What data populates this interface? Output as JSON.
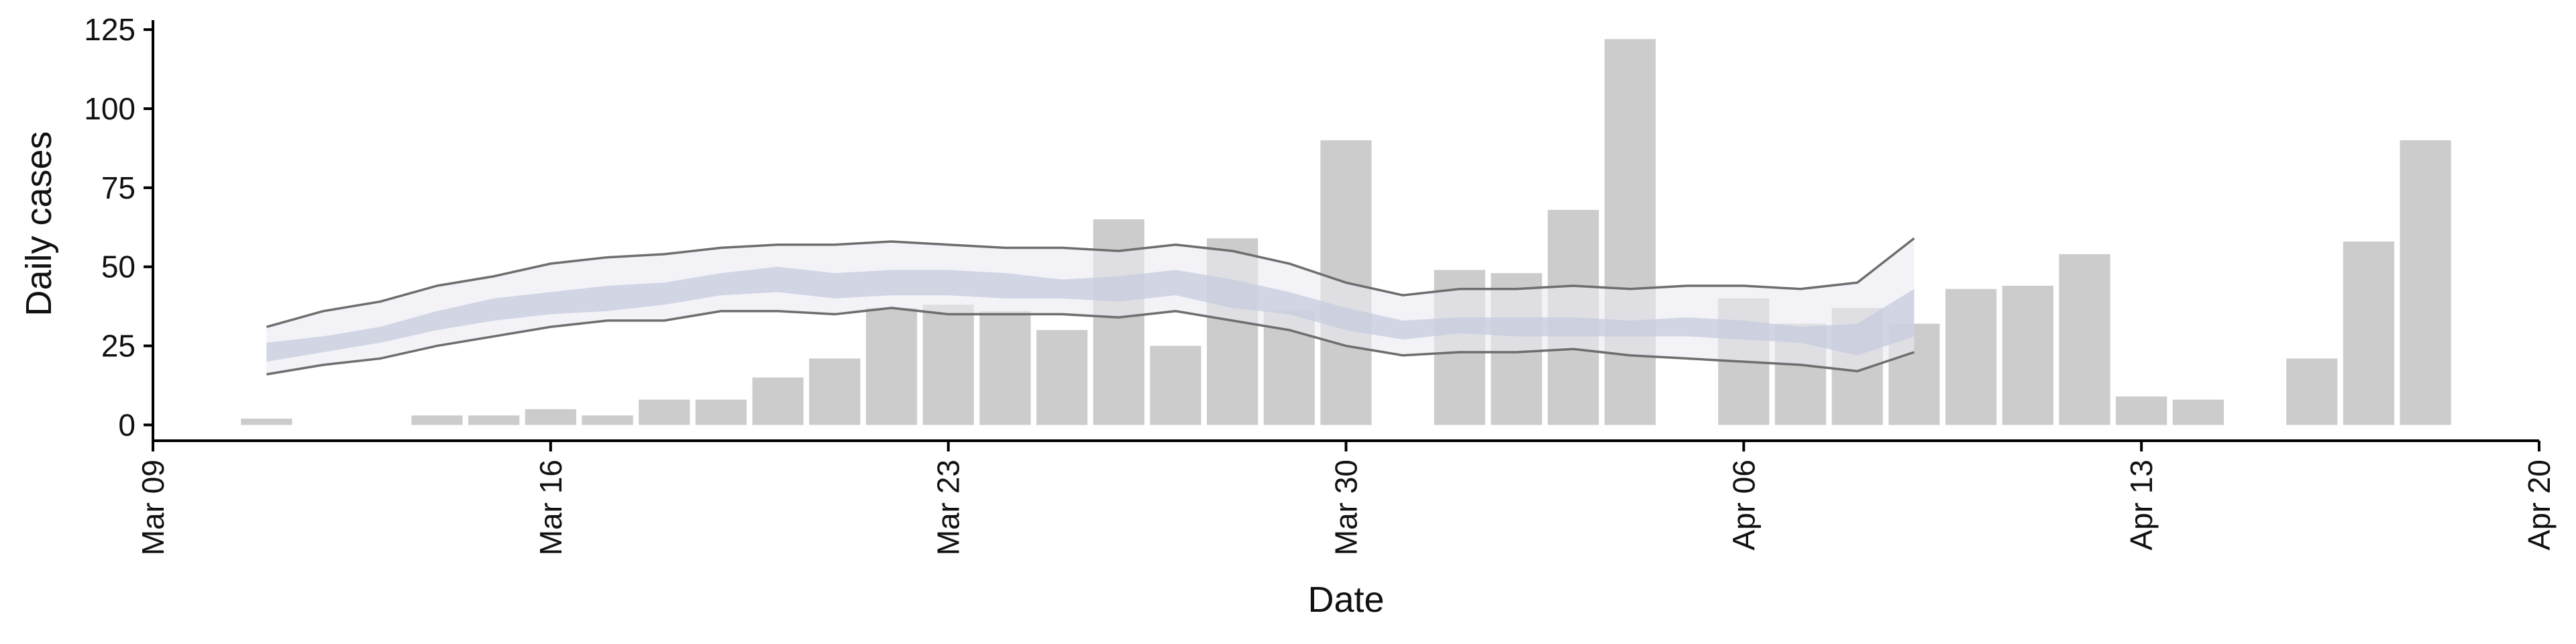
{
  "chart_data": {
    "type": "bar",
    "xlabel": "Date",
    "ylabel": "Daily cases",
    "xlim": [
      "2020-03-09",
      "2020-04-20"
    ],
    "ylim": [
      -5,
      128
    ],
    "x_ticks": [
      "Mar 09",
      "Mar 16",
      "Mar 23",
      "Mar 30",
      "Apr 06",
      "Apr 13",
      "Apr 20"
    ],
    "y_ticks": [
      "0",
      "25",
      "50",
      "75",
      "100",
      "125"
    ],
    "y_tick_values": [
      0,
      25,
      50,
      75,
      100,
      125
    ],
    "grid": false,
    "colors": {
      "bars": "#cccccc",
      "band_outer": "#e9eaf2",
      "band_inner": "#c5cbdd",
      "band_lines": "#6e6e6e",
      "axis": "#000000"
    },
    "bars": {
      "dates": [
        "2020-03-11",
        "2020-03-14",
        "2020-03-15",
        "2020-03-16",
        "2020-03-17",
        "2020-03-18",
        "2020-03-19",
        "2020-03-20",
        "2020-03-21",
        "2020-03-22",
        "2020-03-23",
        "2020-03-24",
        "2020-03-25",
        "2020-03-26",
        "2020-03-27",
        "2020-03-28",
        "2020-03-29",
        "2020-03-30",
        "2020-04-01",
        "2020-04-02",
        "2020-04-03",
        "2020-04-04",
        "2020-04-06",
        "2020-04-07",
        "2020-04-08",
        "2020-04-09",
        "2020-04-10",
        "2020-04-11",
        "2020-04-12",
        "2020-04-13",
        "2020-04-14",
        "2020-04-16",
        "2020-04-17",
        "2020-04-18"
      ],
      "values": [
        2,
        3,
        3,
        5,
        3,
        8,
        8,
        15,
        21,
        37,
        38,
        36,
        30,
        65,
        25,
        59,
        36,
        90,
        49,
        48,
        68,
        122,
        40,
        32,
        37,
        32,
        43,
        44,
        54,
        9,
        8,
        21,
        58,
        90
      ]
    },
    "estimate": {
      "dates": [
        "2020-03-11",
        "2020-03-12",
        "2020-03-13",
        "2020-03-14",
        "2020-03-15",
        "2020-03-16",
        "2020-03-17",
        "2020-03-18",
        "2020-03-19",
        "2020-03-20",
        "2020-03-21",
        "2020-03-22",
        "2020-03-23",
        "2020-03-24",
        "2020-03-25",
        "2020-03-26",
        "2020-03-27",
        "2020-03-28",
        "2020-03-29",
        "2020-03-30",
        "2020-03-31",
        "2020-04-01",
        "2020-04-02",
        "2020-04-03",
        "2020-04-04",
        "2020-04-05",
        "2020-04-06",
        "2020-04-07",
        "2020-04-08",
        "2020-04-09"
      ],
      "upper_90": [
        31,
        36,
        39,
        44,
        47,
        51,
        53,
        54,
        56,
        57,
        57,
        58,
        57,
        56,
        56,
        55,
        57,
        55,
        51,
        45,
        41,
        43,
        43,
        44,
        43,
        44,
        44,
        43,
        45,
        59
      ],
      "upper_50": [
        26,
        28,
        31,
        36,
        40,
        42,
        44,
        45,
        48,
        50,
        48,
        49,
        49,
        48,
        46,
        47,
        49,
        46,
        42,
        37,
        33,
        34,
        34,
        34,
        33,
        34,
        33,
        31,
        32,
        43
      ],
      "lower_50": [
        20,
        23,
        26,
        30,
        33,
        35,
        36,
        38,
        41,
        42,
        40,
        41,
        41,
        40,
        40,
        39,
        41,
        37,
        35,
        30,
        27,
        29,
        28,
        28,
        28,
        28,
        27,
        26,
        22,
        28
      ],
      "lower_90": [
        16,
        19,
        21,
        25,
        28,
        31,
        33,
        33,
        36,
        36,
        35,
        37,
        35,
        35,
        35,
        34,
        36,
        33,
        30,
        25,
        22,
        23,
        23,
        24,
        22,
        21,
        20,
        19,
        17,
        23
      ]
    }
  }
}
